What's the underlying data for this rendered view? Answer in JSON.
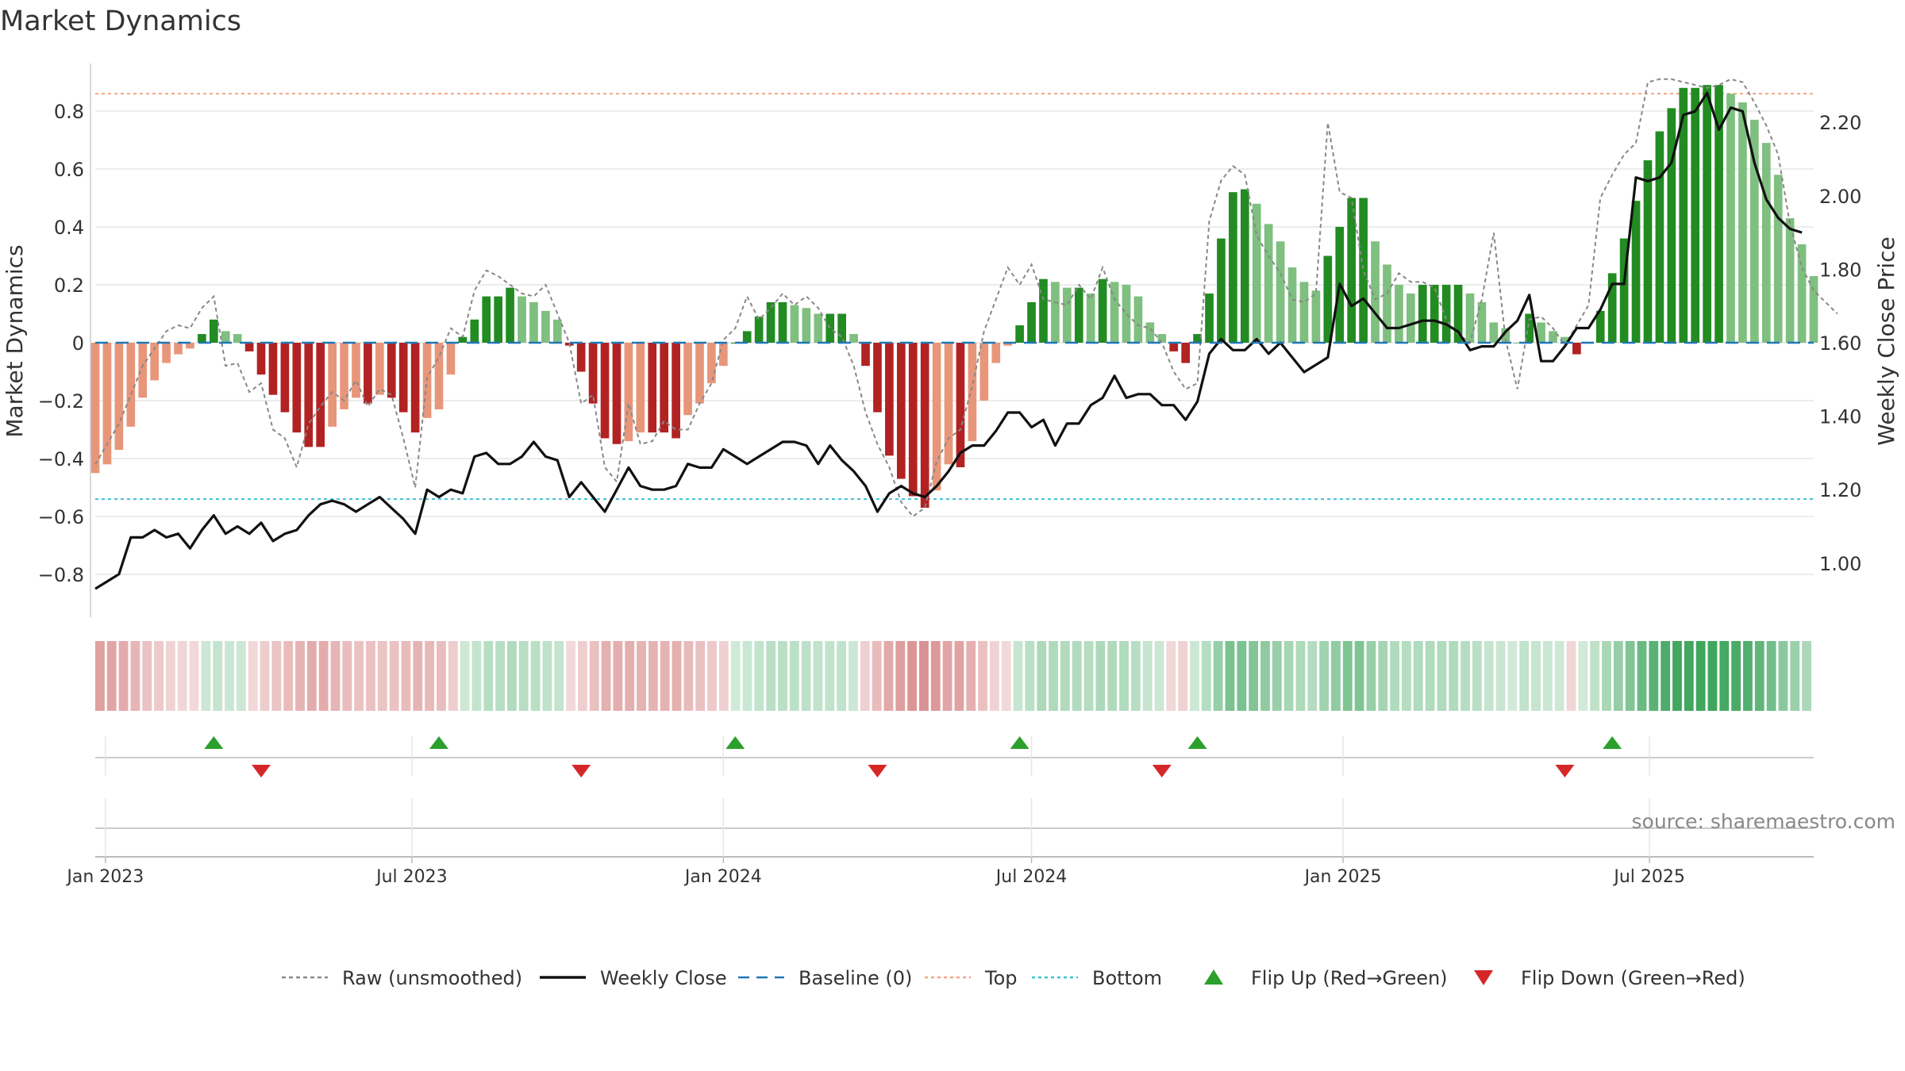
{
  "chart_data": {
    "type": "bar",
    "title": "Market Dynamics",
    "ylabel_left": "Market Dynamics",
    "ylabel_right": "Weekly Close Price",
    "ylim_left": [
      -0.95,
      0.95
    ],
    "ylim_right": [
      0.92,
      2.33
    ],
    "yticks_left": [
      -0.8,
      -0.6,
      -0.4,
      -0.2,
      0,
      0.2,
      0.4,
      0.6,
      0.8
    ],
    "ytick_labels_left": [
      "−0.8",
      "−0.6",
      "−0.4",
      "−0.2",
      "0",
      "0.2",
      "0.4",
      "0.6",
      "0.8"
    ],
    "yticks_right": [
      1.0,
      1.2,
      1.4,
      1.6,
      1.8,
      2.0,
      2.2
    ],
    "ytick_labels_right": [
      "1.00",
      "1.20",
      "1.40",
      "1.60",
      "1.80",
      "2.00",
      "2.20"
    ],
    "x_start": "2022-12-26",
    "x_end": "2025-10-06",
    "xticks": [
      {
        "date": "2023-01-01",
        "label": "Jan 2023"
      },
      {
        "date": "2023-07-01",
        "label": "Jul 2023"
      },
      {
        "date": "2024-01-01",
        "label": "Jan 2024"
      },
      {
        "date": "2024-07-01",
        "label": "Jul 2024"
      },
      {
        "date": "2025-01-01",
        "label": "Jan 2025"
      },
      {
        "date": "2025-07-01",
        "label": "Jul 2025"
      }
    ],
    "top_level": 0.86,
    "bottom_level": -0.54,
    "baseline": 0,
    "grid": true,
    "dynamics": [
      -0.45,
      -0.42,
      -0.37,
      -0.29,
      -0.19,
      -0.13,
      -0.07,
      -0.04,
      -0.02,
      0.03,
      0.08,
      0.04,
      0.03,
      -0.03,
      -0.11,
      -0.18,
      -0.24,
      -0.31,
      -0.36,
      -0.36,
      -0.29,
      -0.23,
      -0.19,
      -0.21,
      -0.18,
      -0.19,
      -0.24,
      -0.31,
      -0.26,
      -0.23,
      -0.11,
      0.02,
      0.08,
      0.16,
      0.16,
      0.19,
      0.16,
      0.14,
      0.11,
      0.08,
      -0.01,
      -0.1,
      -0.21,
      -0.33,
      -0.35,
      -0.34,
      -0.31,
      -0.31,
      -0.31,
      -0.33,
      -0.25,
      -0.21,
      -0.14,
      -0.08,
      0.0,
      0.04,
      0.09,
      0.14,
      0.14,
      0.13,
      0.12,
      0.1,
      0.1,
      0.1,
      0.03,
      -0.08,
      -0.24,
      -0.39,
      -0.47,
      -0.53,
      -0.57,
      -0.51,
      -0.42,
      -0.43,
      -0.34,
      -0.2,
      -0.07,
      -0.01,
      0.06,
      0.14,
      0.22,
      0.21,
      0.19,
      0.19,
      0.17,
      0.22,
      0.21,
      0.2,
      0.16,
      0.07,
      0.03,
      -0.03,
      -0.07,
      0.03,
      0.17,
      0.36,
      0.52,
      0.53,
      0.48,
      0.41,
      0.35,
      0.26,
      0.21,
      0.18,
      0.3,
      0.4,
      0.5,
      0.5,
      0.35,
      0.27,
      0.2,
      0.17,
      0.2,
      0.2,
      0.2,
      0.2,
      0.17,
      0.14,
      0.07,
      0.05,
      0.0,
      0.1,
      0.07,
      0.04,
      0.02,
      -0.04,
      -0.0,
      0.11,
      0.24,
      0.36,
      0.49,
      0.63,
      0.73,
      0.81,
      0.88,
      0.88,
      0.89,
      0.89,
      0.86,
      0.83,
      0.77,
      0.69,
      0.58,
      0.43,
      0.34,
      0.23
    ],
    "raw": [
      -0.42,
      -0.35,
      -0.28,
      -0.18,
      -0.08,
      -0.02,
      0.04,
      0.06,
      0.05,
      0.12,
      0.16,
      -0.08,
      -0.07,
      -0.17,
      -0.14,
      -0.3,
      -0.33,
      -0.43,
      -0.28,
      -0.22,
      -0.17,
      -0.2,
      -0.13,
      -0.22,
      -0.16,
      -0.18,
      -0.33,
      -0.5,
      -0.12,
      -0.05,
      0.05,
      0.02,
      0.18,
      0.25,
      0.23,
      0.2,
      0.17,
      0.16,
      0.2,
      0.1,
      0.0,
      -0.21,
      -0.18,
      -0.43,
      -0.48,
      -0.21,
      -0.35,
      -0.34,
      -0.27,
      -0.3,
      -0.3,
      -0.21,
      -0.14,
      0.01,
      0.05,
      0.16,
      0.08,
      0.12,
      0.17,
      0.13,
      0.16,
      0.12,
      0.05,
      0.02,
      -0.08,
      -0.24,
      -0.35,
      -0.43,
      -0.55,
      -0.6,
      -0.57,
      -0.41,
      -0.33,
      -0.3,
      -0.15,
      0.04,
      0.15,
      0.26,
      0.2,
      0.27,
      0.15,
      0.14,
      0.13,
      0.2,
      0.15,
      0.26,
      0.15,
      0.1,
      0.06,
      0.05,
      0.0,
      -0.1,
      -0.16,
      -0.14,
      0.42,
      0.56,
      0.61,
      0.58,
      0.37,
      0.3,
      0.24,
      0.15,
      0.14,
      0.17,
      0.76,
      0.52,
      0.5,
      0.25,
      0.15,
      0.17,
      0.24,
      0.21,
      0.21,
      0.19,
      0.08,
      0.03,
      0.0,
      0.15,
      0.38,
      0.01,
      -0.16,
      0.08,
      0.09,
      0.05,
      -0.01,
      0.06,
      0.13,
      0.5,
      0.58,
      0.65,
      0.69,
      0.9,
      0.91,
      0.91,
      0.9,
      0.89,
      0.88,
      0.89,
      0.91,
      0.9,
      0.83,
      0.75,
      0.65,
      0.41,
      0.26,
      0.18,
      0.14,
      0.1
    ],
    "weekly_close": [
      0.93,
      0.95,
      0.97,
      1.07,
      1.07,
      1.09,
      1.07,
      1.08,
      1.04,
      1.09,
      1.13,
      1.08,
      1.1,
      1.08,
      1.11,
      1.06,
      1.08,
      1.09,
      1.13,
      1.16,
      1.17,
      1.16,
      1.14,
      1.16,
      1.18,
      1.15,
      1.12,
      1.08,
      1.2,
      1.18,
      1.2,
      1.19,
      1.29,
      1.3,
      1.27,
      1.27,
      1.29,
      1.33,
      1.29,
      1.28,
      1.18,
      1.22,
      1.18,
      1.14,
      1.2,
      1.26,
      1.21,
      1.2,
      1.2,
      1.21,
      1.27,
      1.26,
      1.26,
      1.31,
      1.29,
      1.27,
      1.29,
      1.31,
      1.33,
      1.33,
      1.32,
      1.27,
      1.32,
      1.28,
      1.25,
      1.21,
      1.14,
      1.19,
      1.21,
      1.19,
      1.18,
      1.21,
      1.25,
      1.3,
      1.32,
      1.32,
      1.36,
      1.41,
      1.41,
      1.37,
      1.39,
      1.32,
      1.38,
      1.38,
      1.43,
      1.45,
      1.51,
      1.45,
      1.46,
      1.46,
      1.43,
      1.43,
      1.39,
      1.44,
      1.57,
      1.61,
      1.58,
      1.58,
      1.61,
      1.57,
      1.6,
      1.56,
      1.52,
      1.54,
      1.56,
      1.76,
      1.7,
      1.72,
      1.68,
      1.64,
      1.64,
      1.65,
      1.66,
      1.66,
      1.65,
      1.63,
      1.58,
      1.59,
      1.59,
      1.63,
      1.66,
      1.73,
      1.55,
      1.55,
      1.59,
      1.64,
      1.64,
      1.69,
      1.76,
      1.76,
      2.05,
      2.04,
      2.05,
      2.09,
      2.22,
      2.23,
      2.28,
      2.18,
      2.24,
      2.23,
      2.09,
      1.99,
      1.94,
      1.91,
      1.9
    ],
    "flips_up": [
      "2023-03-06",
      "2023-07-17",
      "2024-01-08",
      "2024-06-24",
      "2024-10-07",
      "2025-06-09"
    ],
    "flips_down": [
      "2023-04-03",
      "2023-10-09",
      "2024-04-01",
      "2024-09-16",
      "2025-05-12"
    ],
    "legend": {
      "placement": "bottom-center",
      "items": [
        {
          "label": "Raw (unsmoothed)",
          "kind": "dashed-line",
          "color": "#888888"
        },
        {
          "label": "Weekly Close",
          "kind": "line",
          "color": "#111111"
        },
        {
          "label": "Baseline (0)",
          "kind": "dashed-line",
          "color": "#1f77b4"
        },
        {
          "label": "Top",
          "kind": "dotted-line",
          "color": "#f4a582"
        },
        {
          "label": "Bottom",
          "kind": "dotted-line",
          "color": "#3ec1d3"
        },
        {
          "label": "Flip Up (Red→Green)",
          "kind": "triangle-up",
          "color": "#2ca02c"
        },
        {
          "label": "Flip Down (Green→Red)",
          "kind": "triangle-down",
          "color": "#d62728"
        }
      ]
    },
    "source": "source: sharemaestro.com",
    "colors": {
      "strong_red": "#b22222",
      "light_red": "#e8967a",
      "strong_green": "#228b22",
      "light_green": "#7fbf7f",
      "raw_line": "#888888",
      "close_line": "#111111",
      "baseline": "#1f77b4",
      "top": "#f4a582",
      "bottom": "#3ec1d3",
      "flip_up": "#2ca02c",
      "flip_down": "#d62728",
      "grid": "#e6e6e6",
      "text": "#333333"
    }
  }
}
